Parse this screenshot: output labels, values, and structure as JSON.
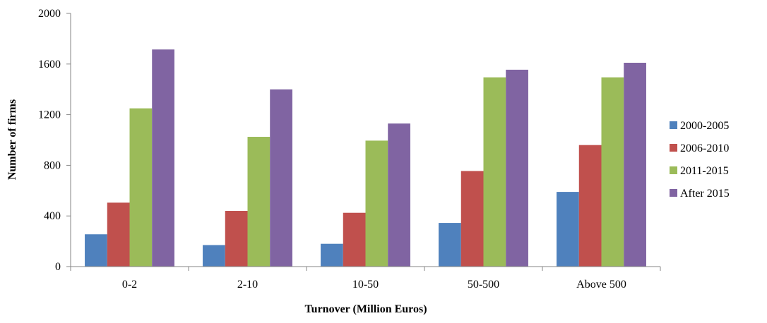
{
  "chart_data": {
    "type": "bar",
    "title": "",
    "xlabel": "Turnover (Million Euros)",
    "ylabel": "Number of firms",
    "categories": [
      "0-2",
      "2-10",
      "10-50",
      "50-500",
      "Above 500"
    ],
    "series": [
      {
        "name": "2000-2005",
        "color": "#4F81BD",
        "values": [
          255,
          170,
          180,
          345,
          590
        ]
      },
      {
        "name": "2006-2010",
        "color": "#C0504D",
        "values": [
          505,
          440,
          425,
          755,
          960
        ]
      },
      {
        "name": "2011-2015",
        "color": "#9BBB59",
        "values": [
          1250,
          1025,
          995,
          1495,
          1495
        ]
      },
      {
        "name": "After 2015",
        "color": "#8064A2",
        "values": [
          1715,
          1400,
          1130,
          1555,
          1610
        ]
      }
    ],
    "ylim": [
      0,
      2000
    ],
    "yticks": [
      0,
      400,
      800,
      1200,
      1600,
      2000
    ],
    "grid": false,
    "legend": "right"
  }
}
